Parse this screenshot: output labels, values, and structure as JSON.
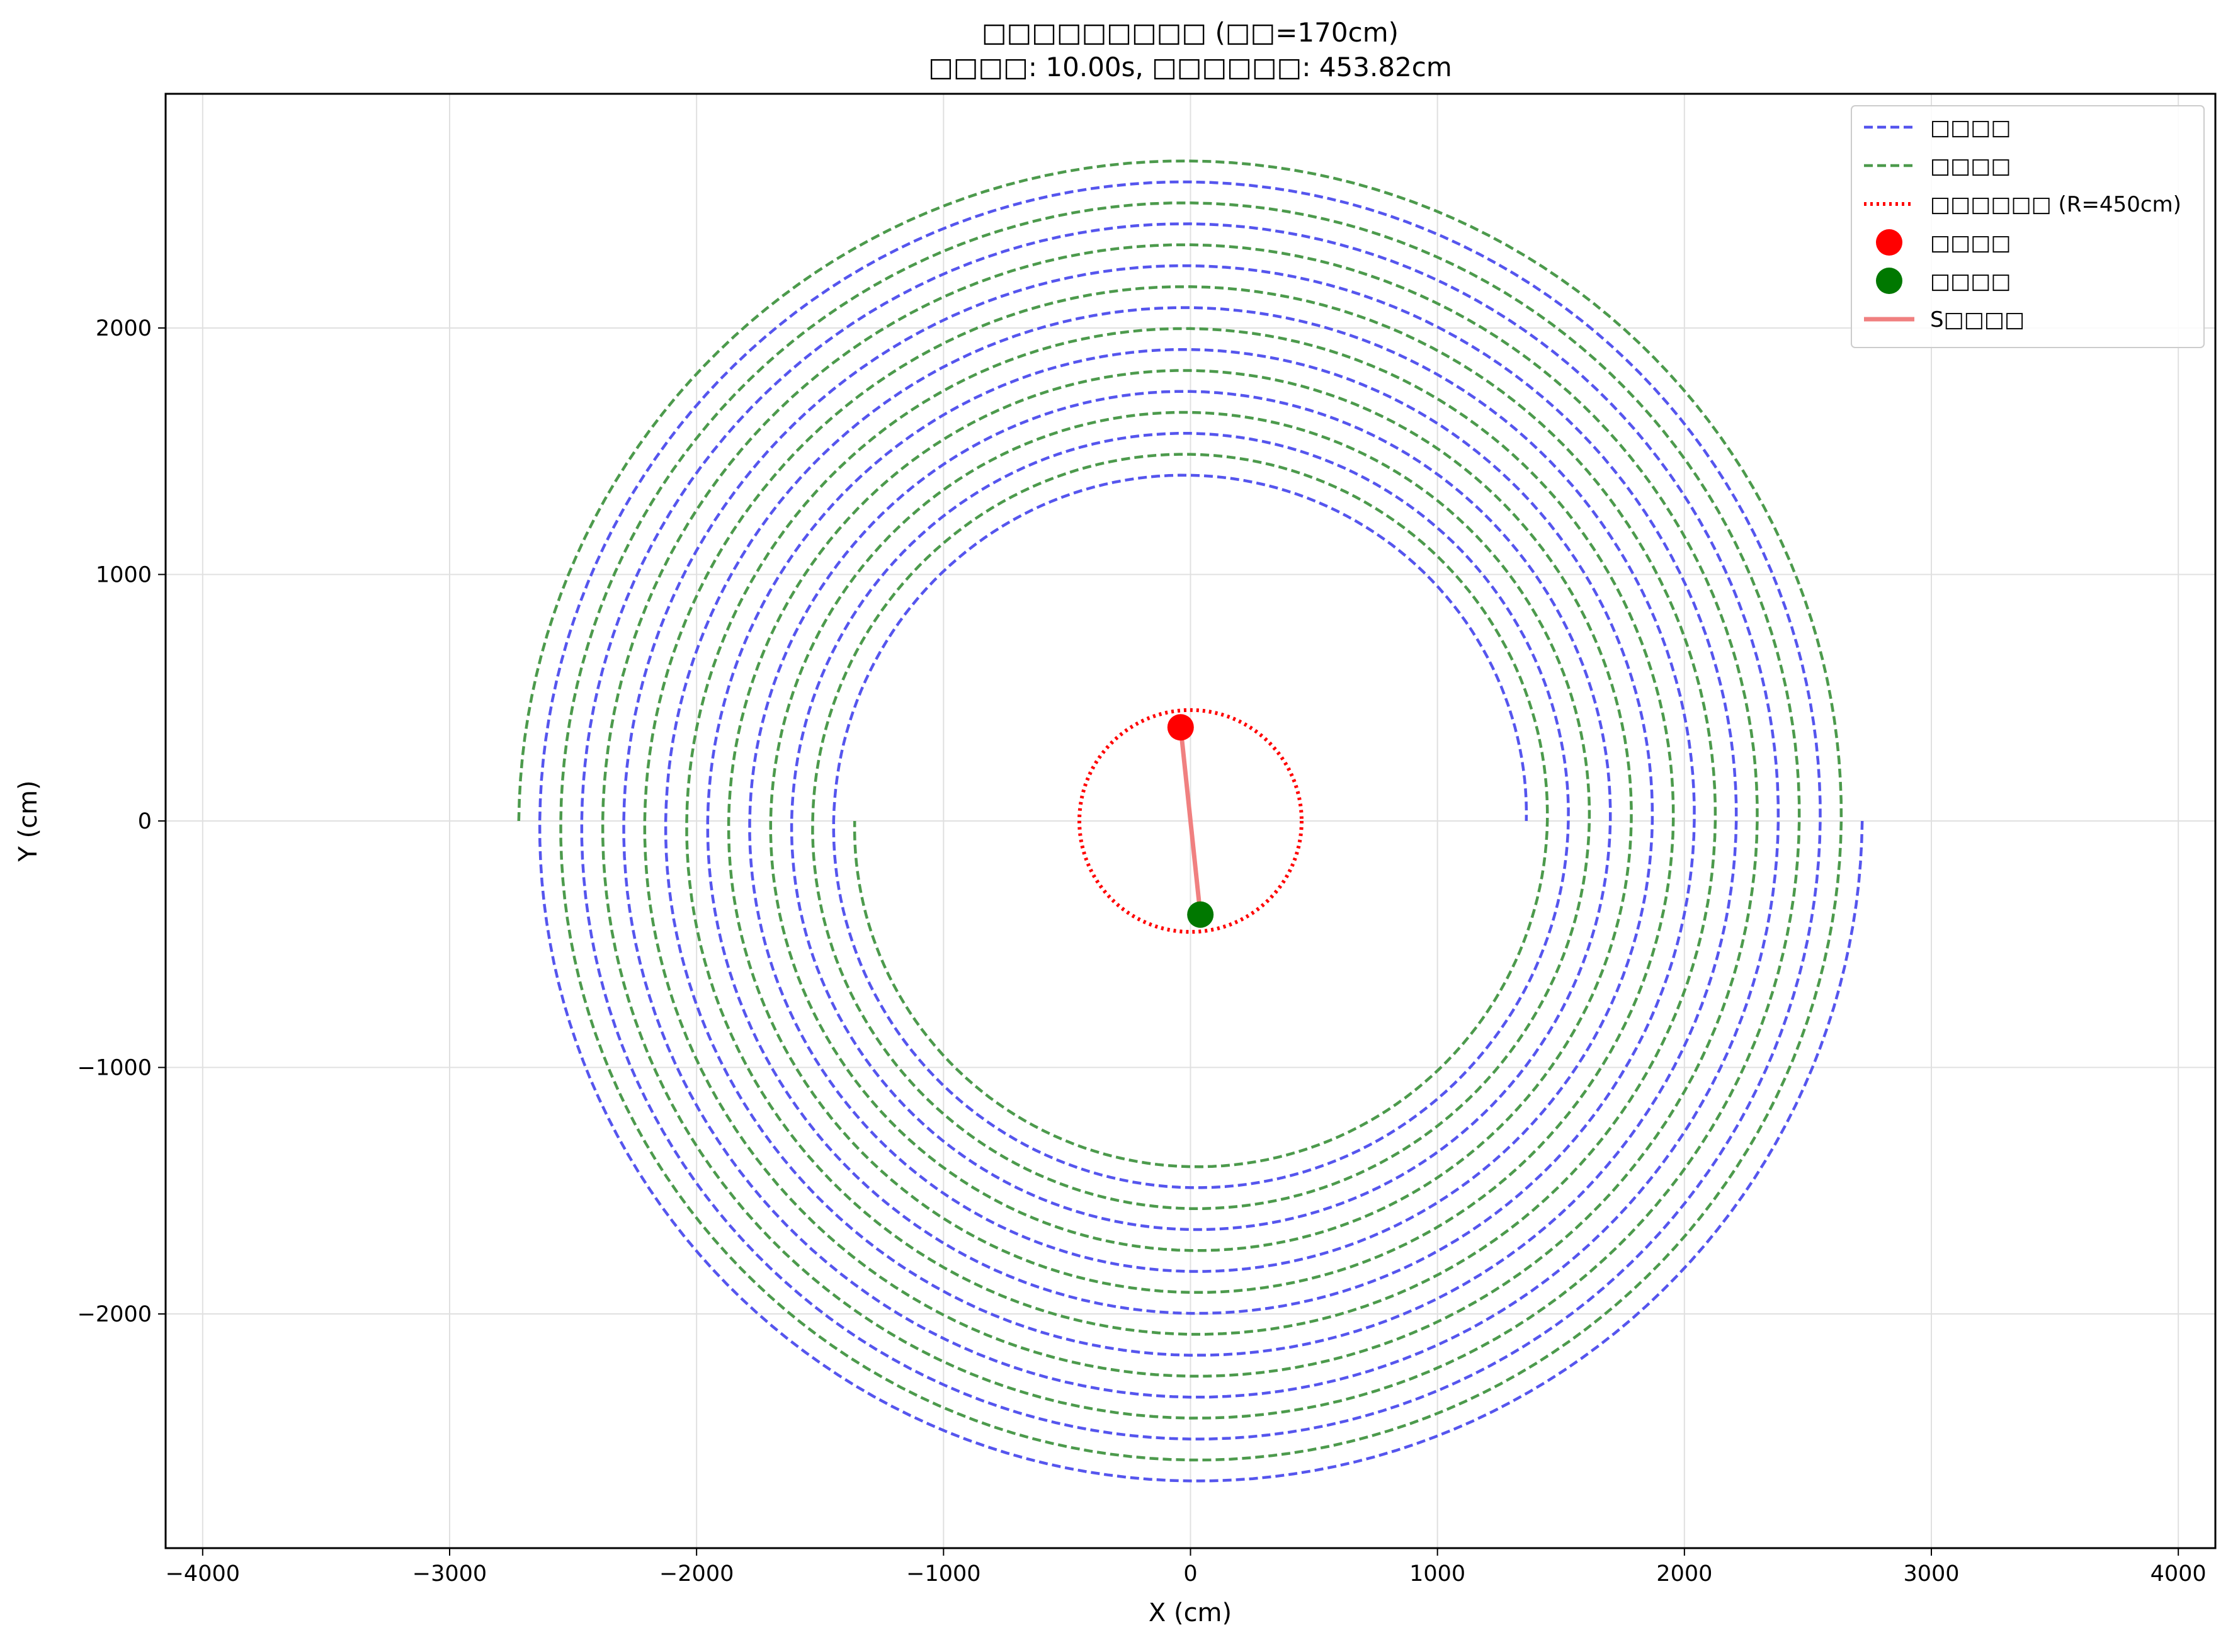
{
  "chart_data": {
    "type": "line",
    "title": "□□□□□□□□□ (□□=170cm)",
    "subtitle": "□□□□: 10.00s, □□□□□□: 453.82cm",
    "xlabel": "X (cm)",
    "ylabel": "Y (cm)",
    "xlim": [
      -4150,
      4150
    ],
    "ylim": [
      -2950,
      2950
    ],
    "xticks": [
      -4000,
      -3000,
      -2000,
      -1000,
      0,
      1000,
      2000,
      3000,
      4000
    ],
    "yticks": [
      -2000,
      -1000,
      0,
      1000,
      2000
    ],
    "xtick_labels": [
      "−4000",
      "−3000",
      "−2000",
      "−1000",
      "0",
      "1000",
      "2000",
      "3000",
      "4000"
    ],
    "ytick_labels": [
      "−2000",
      "−1000",
      "0",
      "1000",
      "2000"
    ],
    "grid": true,
    "legend_position": "upper right",
    "series": [
      {
        "name": "□□□□",
        "kind": "spiral",
        "color": "#5555ee",
        "style": "dashed",
        "start_point": [
          2720,
          0
        ],
        "end_point": [
          1360,
          20
        ],
        "radius_outer": 2720,
        "radius_inner": 1360,
        "pitch": 170
      },
      {
        "name": "□□□□",
        "kind": "spiral",
        "color": "#4c9a4c",
        "style": "dashed",
        "start_point": [
          -2720,
          0
        ],
        "end_point": [
          -1360,
          -20
        ],
        "radius_outer": 2720,
        "radius_inner": 1360,
        "pitch": 170
      },
      {
        "name": "□□□□□□ (R=450cm)",
        "kind": "circle",
        "color": "#ff0000",
        "style": "dotted",
        "center": [
          0,
          0
        ],
        "radius": 450
      },
      {
        "name": "□□□□",
        "kind": "point",
        "color": "#ff0000",
        "x": -40,
        "y": 380
      },
      {
        "name": "□□□□",
        "kind": "point",
        "color": "#007800",
        "x": 40,
        "y": -380
      },
      {
        "name": "S□□□□",
        "kind": "segment",
        "color": "#f08080",
        "points": [
          [
            -40,
            380
          ],
          [
            40,
            -380
          ]
        ]
      }
    ]
  }
}
